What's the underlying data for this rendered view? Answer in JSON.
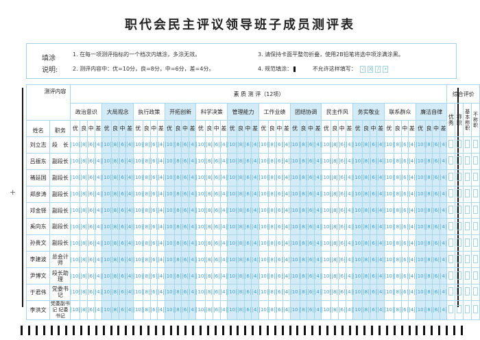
{
  "title": "职代会民主评议领导班子成员测评表",
  "instructions": {
    "label_1": "填涂",
    "label_2": "说明:",
    "item1": "1. 在每一项测评指标的一个档次内填涂，多涂无效。",
    "item2": "2. 测评内容中：优=10分，良=8分，中=6分，差=4分。",
    "item3": "3. 请保持卡面平整勿折叠，使用2B铅笔将选中项涂满涂黑。",
    "item4": "4. 规范填涂：",
    "not_allowed": "不允许这样填写：",
    "bad_marks": [
      "√",
      "X",
      "/",
      "•"
    ]
  },
  "table": {
    "corner_top": "测评内容",
    "col_name": "姓名",
    "col_position": "职务",
    "quality_header": "素 质 测 评（12项）",
    "overall_header": "综合评价",
    "categories": [
      "政治意识",
      "大局观念",
      "执行政策",
      "开拓创新",
      "科学决策",
      "管理能力",
      "工作业绩",
      "团结协调",
      "民主作风",
      "务实敬业",
      "联系群众",
      "廉洁自律"
    ],
    "grades": [
      "优",
      "良",
      "中",
      "差"
    ],
    "scores": [
      "10",
      "8",
      "6",
      "4"
    ],
    "overall_options": [
      "优秀",
      "称职",
      "基本称职",
      "不称职"
    ],
    "shaded_color": "#d3ebf6",
    "rows": [
      {
        "name": "刘立志",
        "position": "段　长"
      },
      {
        "name": "吕振东",
        "position": "副段长"
      },
      {
        "name": "褚延国",
        "position": "副段长"
      },
      {
        "name": "郑彦涛",
        "position": "副段长"
      },
      {
        "name": "邓金铎",
        "position": "副段长"
      },
      {
        "name": "奚向东",
        "position": "副段长"
      },
      {
        "name": "孙贵文",
        "position": "副段长"
      },
      {
        "name": "李建波",
        "position": "总会计师"
      },
      {
        "name": "尹博文",
        "position": "段长助理"
      },
      {
        "name": "于君伟",
        "position": "党委书记"
      },
      {
        "name": "李洪文",
        "position": "党委副书记 纪委书记"
      }
    ]
  }
}
